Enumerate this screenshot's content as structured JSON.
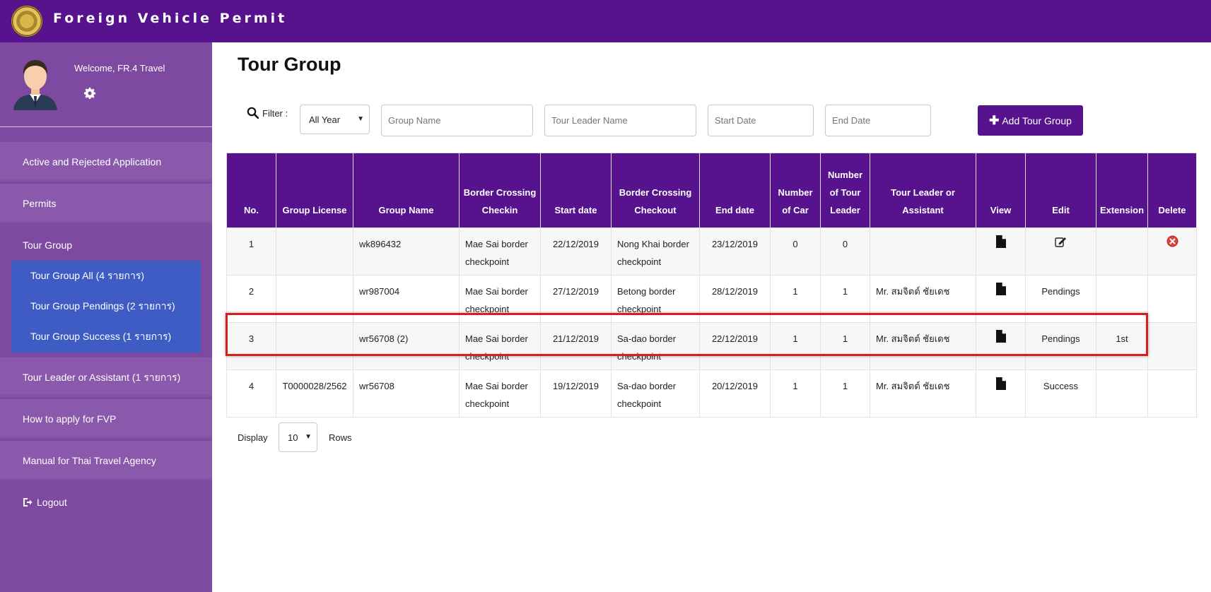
{
  "app": {
    "title": "Foreign Vehicle Permit"
  },
  "user": {
    "welcome": "Welcome, FR.4 Travel"
  },
  "sidebar": {
    "items": [
      {
        "label": "Active and Rejected Application"
      },
      {
        "label": "Permits"
      },
      {
        "label": "Tour Group"
      },
      {
        "label": "Tour Leader or Assistant (1 รายการ)"
      },
      {
        "label": "How to apply for FVP"
      },
      {
        "label": "Manual for Thai Travel Agency"
      },
      {
        "label": "Logout"
      }
    ],
    "tour_group_submenu": [
      {
        "label": "Tour Group All (4 รายการ)"
      },
      {
        "label": "Tour Group Pendings (2 รายการ)"
      },
      {
        "label": "Tour Group Success (1 รายการ)"
      }
    ]
  },
  "main": {
    "title": "Tour Group",
    "filter": {
      "label": "Filter :",
      "year_selected": "All Year",
      "group_name_placeholder": "Group Name",
      "leader_name_placeholder": "Tour Leader Name",
      "start_date_placeholder": "Start Date",
      "end_date_placeholder": "End Date"
    },
    "add_button": "Add Tour Group",
    "table": {
      "headers": [
        "No.",
        "Group License",
        "Group Name",
        "Border Crossing Checkin",
        "Start date",
        "Border Crossing Checkout",
        "End date",
        "Number of Car",
        "Number of Tour Leader",
        "Tour Leader or Assistant",
        "View",
        "Edit",
        "Extension",
        "Delete"
      ],
      "rows": [
        {
          "no": "1",
          "license": "",
          "group": "wk896432",
          "checkin": "Mae Sai border checkpoint",
          "start": "22/12/2019",
          "checkout": "Nong Khai border checkpoint",
          "end": "23/12/2019",
          "cars": "0",
          "leaders": "0",
          "leader_name": "",
          "edit": "",
          "extension": ""
        },
        {
          "no": "2",
          "license": "",
          "group": "wr987004",
          "checkin": "Mae Sai border checkpoint",
          "start": "27/12/2019",
          "checkout": "Betong border checkpoint",
          "end": "28/12/2019",
          "cars": "1",
          "leaders": "1",
          "leader_name": "Mr. สมจิตต์ ชัยเดช",
          "edit": "Pendings",
          "extension": ""
        },
        {
          "no": "3",
          "license": "",
          "group": "wr56708 (2)",
          "checkin": "Mae Sai border checkpoint",
          "start": "21/12/2019",
          "checkout": "Sa-dao border checkpoint",
          "end": "22/12/2019",
          "cars": "1",
          "leaders": "1",
          "leader_name": "Mr. สมจิตต์ ชัยเดช",
          "edit": "Pendings",
          "extension": "1st"
        },
        {
          "no": "4",
          "license": "T0000028/2562",
          "group": "wr56708",
          "checkin": "Mae Sai border checkpoint",
          "start": "19/12/2019",
          "checkout": "Sa-dao border checkpoint",
          "end": "20/12/2019",
          "cars": "1",
          "leaders": "1",
          "leader_name": "Mr. สมจิตต์ ชัยเดช",
          "edit": "Success",
          "extension": ""
        }
      ]
    },
    "pagination": {
      "display_label": "Display",
      "rows_value": "10",
      "rows_label": "Rows"
    }
  },
  "colors": {
    "brand": "#56138d",
    "sidebar": "#7e4aa1",
    "submenu": "#3e5cc4",
    "highlight": "#d91c1c",
    "delete": "#e0413a"
  },
  "icons": [
    "crest-logo",
    "avatar",
    "gear-icon",
    "search-icon",
    "plus-icon",
    "document-icon",
    "edit-icon",
    "delete-icon",
    "logout-icon",
    "chevron-down-icon"
  ]
}
